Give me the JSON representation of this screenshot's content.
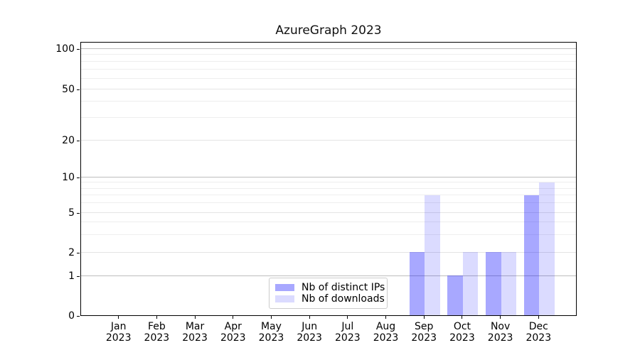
{
  "title": "AzureGraph 2023",
  "legend": {
    "items": [
      {
        "label": "Nb of distinct IPs",
        "color": "rgba(0,0,255,0.34)"
      },
      {
        "label": "Nb of downloads",
        "color": "rgba(0,0,255,0.14)"
      }
    ]
  },
  "chart_data": {
    "type": "bar",
    "title": "AzureGraph 2023",
    "categories": [
      "Jan 2023",
      "Feb 2023",
      "Mar 2023",
      "Apr 2023",
      "May 2023",
      "Jun 2023",
      "Jul 2023",
      "Aug 2023",
      "Sep 2023",
      "Oct 2023",
      "Nov 2023",
      "Dec 2023"
    ],
    "series": [
      {
        "name": "Nb of distinct IPs",
        "color": "rgba(0,0,255,0.34)",
        "values": [
          0,
          0,
          0,
          0,
          0,
          0,
          0,
          0,
          2,
          1,
          2,
          7
        ]
      },
      {
        "name": "Nb of downloads",
        "color": "rgba(0,0,255,0.14)",
        "values": [
          0,
          0,
          0,
          0,
          0,
          0,
          0,
          0,
          7,
          2,
          2,
          9
        ]
      }
    ],
    "xlabel": "",
    "ylabel": "",
    "y_scale": "symlog",
    "y_tick_values": [
      0,
      1,
      2,
      5,
      10,
      20,
      50,
      100
    ],
    "y_tick_labels": [
      "0",
      "1",
      "2",
      "5",
      "10",
      "20",
      "50",
      "100"
    ],
    "y_major_decades": [
      1,
      10,
      100
    ],
    "y_labeled_minor_ticks": [
      2,
      5,
      20,
      50
    ],
    "y_minor_gridlines": [
      3,
      4,
      6,
      7,
      8,
      9,
      30,
      40,
      60,
      70,
      80,
      90
    ],
    "ylim": [
      0,
      113
    ],
    "grid": true,
    "legend_position": "lower center inside plot",
    "colors": {
      "major_gridline": "#bdbdbd",
      "minor_gridline": "#eeeeee",
      "labeled_minor_gridline": "#e4e4e4",
      "spine": "#000000",
      "background": "#ffffff"
    }
  }
}
